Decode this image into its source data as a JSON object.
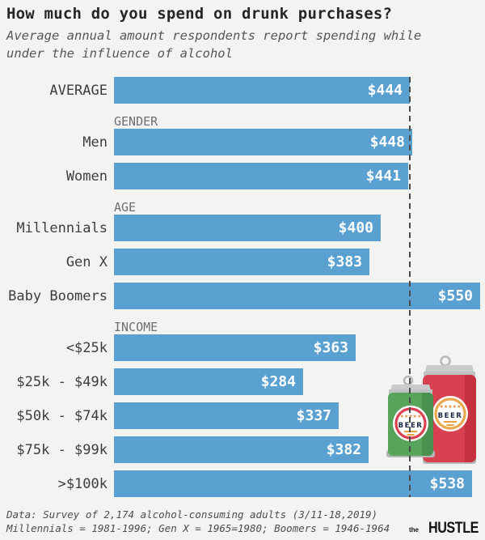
{
  "header": {
    "title": "How much do you spend on drunk purchases?",
    "subtitle_lines": [
      "Average annual amount respondents report spending while",
      "under the influence of alcohol"
    ]
  },
  "chart_data": {
    "type": "bar",
    "orientation": "horizontal",
    "value_prefix": "$",
    "xlim": [
      0,
      557
    ],
    "average_reference_value": 444,
    "bar_color": "#5aa0d1",
    "value_label_color": "#ffffff",
    "sections": [
      {
        "header": "",
        "rows": [
          {
            "label": "AVERAGE",
            "value": 444,
            "display": "$444"
          }
        ]
      },
      {
        "header": "GENDER",
        "rows": [
          {
            "label": "Men",
            "value": 448,
            "display": "$448"
          },
          {
            "label": "Women",
            "value": 441,
            "display": "$441"
          }
        ]
      },
      {
        "header": "AGE",
        "rows": [
          {
            "label": "Millennials",
            "value": 400,
            "display": "$400"
          },
          {
            "label": "Gen X",
            "value": 383,
            "display": "$383"
          },
          {
            "label": "Baby Boomers",
            "value": 550,
            "display": "$550"
          }
        ]
      },
      {
        "header": "INCOME",
        "rows": [
          {
            "label": "<$25k",
            "value": 363,
            "display": "$363"
          },
          {
            "label": "$25k - $49k",
            "value": 284,
            "display": "$284"
          },
          {
            "label": "$50k - $74k",
            "value": 337,
            "display": "$337"
          },
          {
            "label": "$75k - $99k",
            "value": 382,
            "display": "$382"
          },
          {
            "label": ">$100k",
            "value": 538,
            "display": "$538"
          }
        ]
      }
    ]
  },
  "footer": {
    "line1": "Data: Survey of 2,174 alcohol-consuming adults (3/11-18,2019)",
    "line2": "Millennials = 1981-1996; Gen X = 1965=1980; Boomers = 1946-1964"
  },
  "logo": {
    "prefix": "the",
    "name": "HUSTLE"
  },
  "illustration": {
    "cans": [
      {
        "body_color": "#57a45a",
        "ring_color": "#d8414f",
        "label": "BEER"
      },
      {
        "body_color": "#d8414f",
        "ring_color": "#e9a84b",
        "label": "BEER"
      }
    ]
  },
  "colors": {
    "background": "#f3f3f1",
    "title_text": "#262626",
    "subtitle_text": "#565656",
    "row_label_text": "#3d3d3d",
    "section_header_text": "#6f6f6f",
    "dashed_line": "#4a4a4a"
  }
}
